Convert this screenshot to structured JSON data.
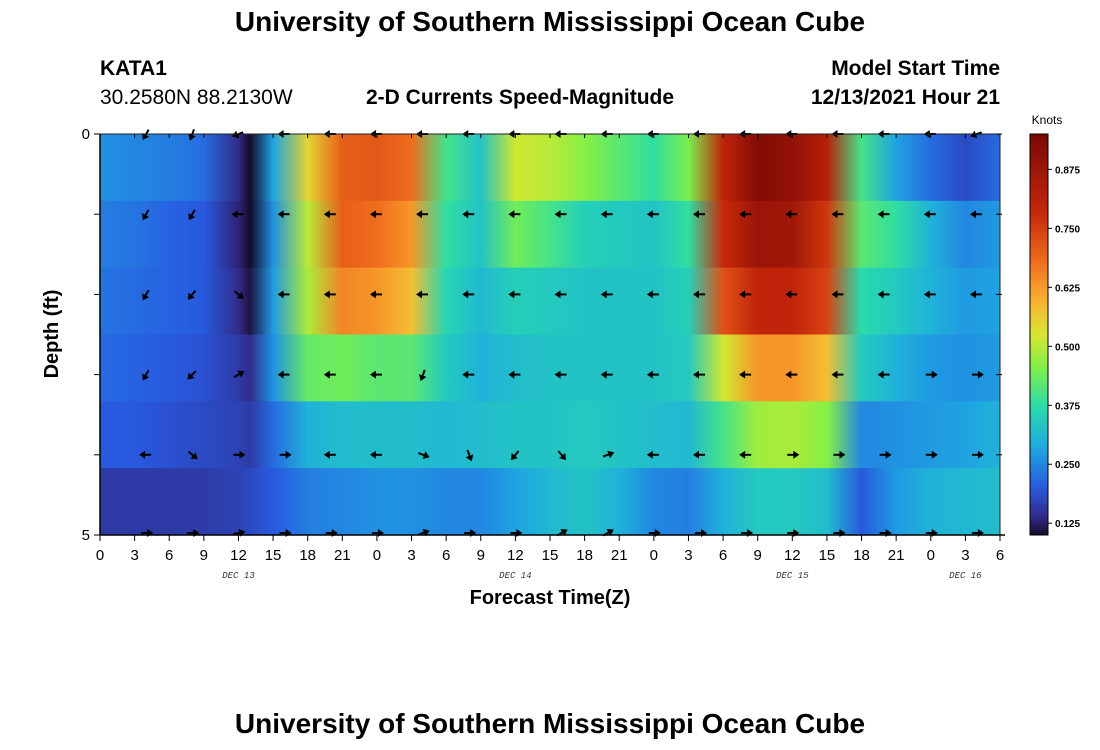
{
  "page": {
    "title": "University of Southern Mississippi Ocean Cube",
    "title_bottom": "University of Southern Mississippi Ocean Cube",
    "station": "KATA1",
    "location": "30.2580N  88.2130W",
    "product": "2-D Currents Speed-Magnitude",
    "model_label": "Model Start Time",
    "model_time": "12/13/2021 Hour 21"
  },
  "chart_data": {
    "type": "heatmap",
    "title": "2-D Currents Speed-Magnitude",
    "xlabel": "Forecast Time(Z)",
    "ylabel": "Depth (ft)",
    "colorbar_label": "Knots",
    "xlim": [
      0,
      78
    ],
    "ylim": [
      0,
      5
    ],
    "x_ticks": [
      0,
      3,
      6,
      9,
      12,
      15,
      18,
      21,
      24,
      27,
      30,
      33,
      36,
      39,
      42,
      45,
      48,
      51,
      54,
      57,
      60,
      63,
      66,
      69,
      72,
      75,
      78
    ],
    "x_tick_labels": [
      "0",
      "3",
      "6",
      "9",
      "12",
      "15",
      "18",
      "21",
      "0",
      "3",
      "6",
      "9",
      "12",
      "15",
      "18",
      "21",
      "0",
      "3",
      "6",
      "9",
      "12",
      "15",
      "18",
      "21",
      "0",
      "3",
      "6"
    ],
    "y_ticks": [
      0,
      1,
      2,
      3,
      4,
      5
    ],
    "y_tick_labels": [
      "0",
      "",
      "",
      "",
      "",
      "5"
    ],
    "day_labels": [
      {
        "x": 12,
        "text": "DEC 13"
      },
      {
        "x": 36,
        "text": "DEC 14"
      },
      {
        "x": 60,
        "text": "DEC 15"
      },
      {
        "x": 75,
        "text": "DEC 16"
      }
    ],
    "colorbar_range": [
      0.1,
      0.95
    ],
    "colorbar_ticks": [
      0.125,
      0.25,
      0.375,
      0.5,
      0.625,
      0.75,
      0.875
    ],
    "colorbar_tick_labels": [
      "0.125",
      "0.250",
      "0.375",
      "0.500",
      "0.625",
      "0.750",
      "0.875"
    ],
    "hours": [
      0,
      3,
      6,
      9,
      12,
      13,
      15,
      18,
      21,
      24,
      27,
      30,
      33,
      36,
      39,
      42,
      45,
      48,
      51,
      54,
      57,
      60,
      63,
      66,
      69,
      72,
      75,
      78
    ],
    "depth_layers": [
      0,
      1,
      2,
      3,
      4,
      5
    ],
    "speed_knots": [
      [
        0.26,
        0.25,
        0.24,
        0.22,
        0.14,
        0.03,
        0.28,
        0.55,
        0.7,
        0.71,
        0.68,
        0.4,
        0.33,
        0.52,
        0.5,
        0.46,
        0.42,
        0.38,
        0.45,
        0.8,
        0.93,
        0.9,
        0.82,
        0.4,
        0.28,
        0.22,
        0.18,
        0.22
      ],
      [
        0.24,
        0.23,
        0.21,
        0.2,
        0.13,
        0.08,
        0.26,
        0.5,
        0.7,
        0.68,
        0.63,
        0.38,
        0.33,
        0.44,
        0.4,
        0.35,
        0.34,
        0.33,
        0.38,
        0.78,
        0.88,
        0.87,
        0.76,
        0.42,
        0.38,
        0.3,
        0.25,
        0.27
      ],
      [
        0.23,
        0.22,
        0.21,
        0.2,
        0.14,
        0.11,
        0.27,
        0.49,
        0.65,
        0.63,
        0.58,
        0.36,
        0.31,
        0.35,
        0.34,
        0.33,
        0.33,
        0.33,
        0.35,
        0.72,
        0.8,
        0.8,
        0.74,
        0.37,
        0.34,
        0.3,
        0.27,
        0.28
      ],
      [
        0.22,
        0.21,
        0.2,
        0.19,
        0.16,
        0.14,
        0.26,
        0.43,
        0.44,
        0.42,
        0.42,
        0.34,
        0.3,
        0.32,
        0.33,
        0.33,
        0.33,
        0.33,
        0.34,
        0.52,
        0.63,
        0.63,
        0.58,
        0.34,
        0.3,
        0.27,
        0.26,
        0.27
      ],
      [
        0.2,
        0.2,
        0.19,
        0.18,
        0.17,
        0.16,
        0.22,
        0.3,
        0.32,
        0.32,
        0.32,
        0.31,
        0.32,
        0.33,
        0.33,
        0.34,
        0.33,
        0.32,
        0.31,
        0.4,
        0.48,
        0.49,
        0.46,
        0.25,
        0.26,
        0.27,
        0.28,
        0.3
      ],
      [
        0.16,
        0.16,
        0.16,
        0.16,
        0.17,
        0.18,
        0.2,
        0.24,
        0.25,
        0.26,
        0.26,
        0.25,
        0.25,
        0.28,
        0.31,
        0.33,
        0.3,
        0.25,
        0.24,
        0.3,
        0.34,
        0.34,
        0.32,
        0.2,
        0.27,
        0.3,
        0.31,
        0.32
      ]
    ],
    "arrow_hours": [
      4,
      8,
      12,
      16,
      20,
      24,
      28,
      32,
      36,
      40,
      44,
      48,
      52,
      56,
      60,
      64,
      68,
      72,
      76
    ],
    "arrow_depths": [
      0,
      1,
      2,
      3,
      4,
      5
    ],
    "arrow_directions_deg": [
      [
        210,
        200,
        250,
        270,
        270,
        270,
        270,
        270,
        270,
        270,
        270,
        270,
        270,
        270,
        270,
        270,
        270,
        270,
        250
      ],
      [
        210,
        210,
        270,
        270,
        270,
        270,
        270,
        270,
        270,
        270,
        270,
        270,
        270,
        270,
        270,
        270,
        270,
        270,
        270
      ],
      [
        210,
        220,
        130,
        270,
        270,
        270,
        270,
        270,
        270,
        270,
        270,
        270,
        270,
        270,
        270,
        270,
        270,
        270,
        270
      ],
      [
        210,
        225,
        60,
        270,
        270,
        270,
        200,
        270,
        270,
        270,
        270,
        270,
        270,
        270,
        270,
        270,
        270,
        90,
        90
      ],
      [
        270,
        130,
        90,
        90,
        270,
        270,
        110,
        160,
        220,
        140,
        70,
        270,
        270,
        270,
        90,
        90,
        90,
        90,
        90
      ],
      [
        90,
        90,
        80,
        90,
        90,
        90,
        70,
        90,
        90,
        60,
        60,
        90,
        90,
        90,
        90,
        90,
        90,
        90,
        90
      ]
    ]
  }
}
